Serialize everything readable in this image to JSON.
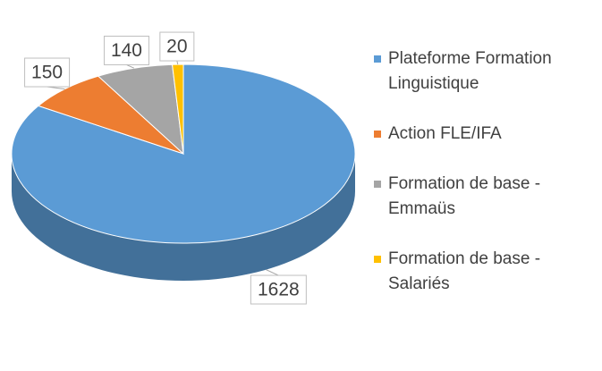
{
  "chart_data": {
    "type": "pie",
    "categories": [
      "Plateforme Formation Linguistique",
      "Action FLE/IFA",
      "Formation de base - Emmaüs",
      "Formation de base - Salariés"
    ],
    "values": [
      1628,
      150,
      140,
      20
    ],
    "colors": [
      "#5b9bd5",
      "#ed7d31",
      "#a5a5a5",
      "#ffc000"
    ]
  }
}
